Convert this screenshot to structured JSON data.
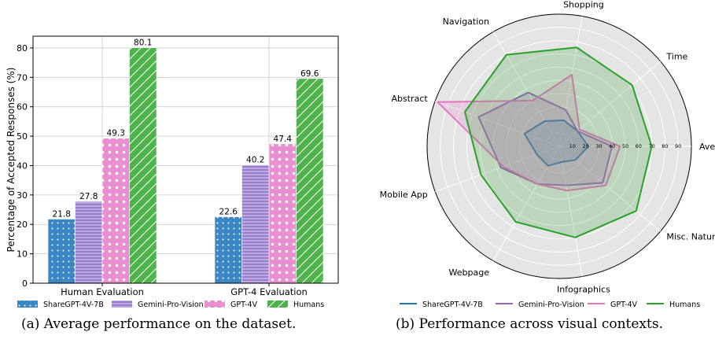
{
  "captions": {
    "left": "(a)  Average performance on the dataset.",
    "right": "(b)  Performance across visual contexts."
  },
  "chart_data": [
    {
      "type": "bar",
      "ylabel": "Percentage of Accepted Responses (%)",
      "xlabel": "",
      "ylim": [
        0,
        84
      ],
      "yticks": [
        0,
        10,
        20,
        30,
        40,
        50,
        60,
        70,
        80
      ],
      "grid": true,
      "legend_position": "bottom",
      "categories": [
        "Human Evaluation",
        "GPT-4 Evaluation"
      ],
      "series": [
        {
          "name": "ShareGPT-4V-7B",
          "values": [
            21.8,
            22.6
          ],
          "color": "#3a87c3",
          "pattern": "dots"
        },
        {
          "name": "Gemini-Pro-Vision",
          "values": [
            27.8,
            40.2
          ],
          "color": "#9b7fcf",
          "pattern": "hlines"
        },
        {
          "name": "GPT-4V",
          "values": [
            49.3,
            47.4
          ],
          "color": "#e98ed0",
          "pattern": "circles"
        },
        {
          "name": "Humans",
          "values": [
            80.1,
            69.6
          ],
          "color": "#4db34a",
          "pattern": "diag"
        }
      ]
    },
    {
      "type": "radar",
      "rmax": 100,
      "rticks": [
        10,
        20,
        30,
        40,
        50,
        60,
        70,
        80,
        90
      ],
      "legend_position": "bottom",
      "axes": [
        "Average",
        "Time",
        "Shopping",
        "Navigation",
        "Abstract",
        "Mobile App",
        "Webpage",
        "Infographics",
        "Misc. Natural Scenes"
      ],
      "series": [
        {
          "name": "ShareGPT-4V-7B",
          "values": [
            22,
            18,
            20,
            22,
            28,
            18,
            17,
            12,
            16
          ],
          "color": "#1f77b4"
        },
        {
          "name": "Gemini-Pro-Vision",
          "values": [
            40,
            18,
            28,
            47,
            65,
            47,
            33,
            30,
            43
          ],
          "color": "#9467bd"
        },
        {
          "name": "GPT-4V",
          "values": [
            46,
            20,
            55,
            40,
            98,
            45,
            33,
            34,
            46
          ],
          "color": "#e377c2"
        },
        {
          "name": "Humans",
          "values": [
            70,
            72,
            76,
            80,
            76,
            63,
            66,
            70,
            76
          ],
          "color": "#2ca02c"
        }
      ]
    }
  ]
}
